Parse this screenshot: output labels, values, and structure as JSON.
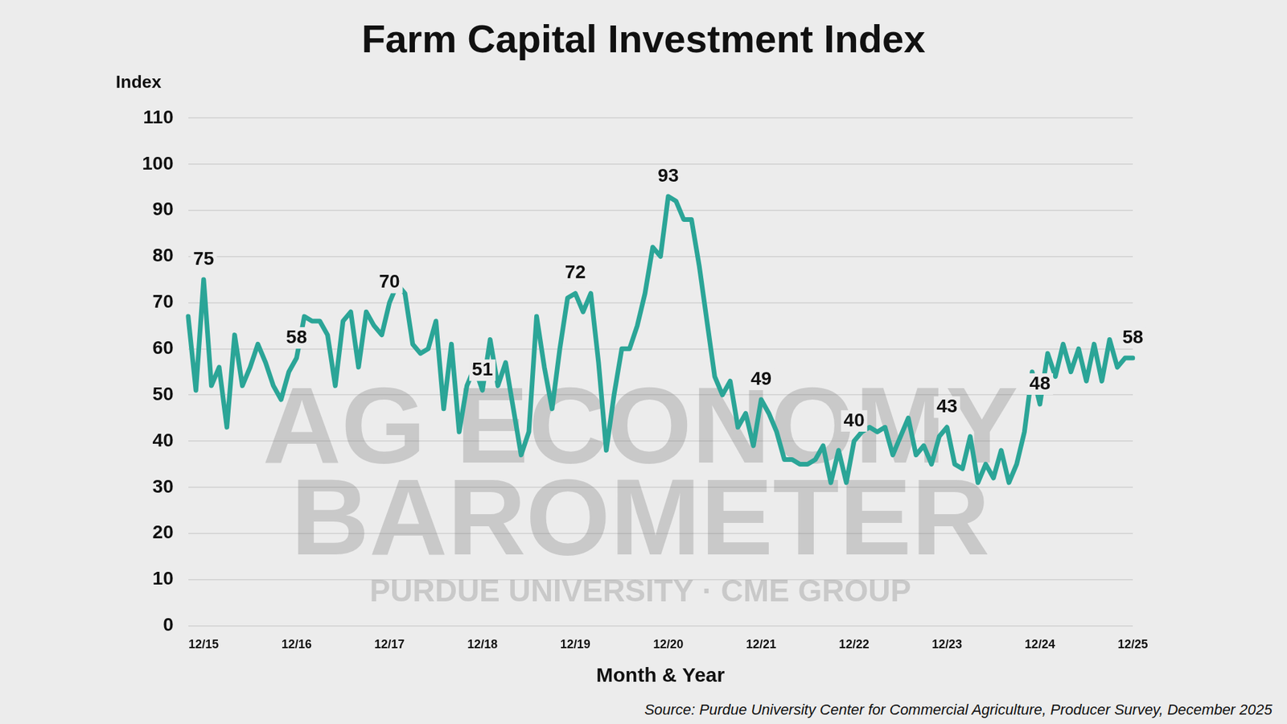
{
  "chart_data": {
    "type": "line",
    "title": "Farm Capital Investment Index",
    "y_label": "Index",
    "x_label": "Month & Year",
    "source": "Source: Purdue University Center for Commercial Agriculture, Producer Survey, December 2025",
    "watermark": [
      "AG ECONOMY",
      "BAROMETER",
      "PURDUE UNIVERSITY · CME GROUP"
    ],
    "categories": [
      null,
      null,
      "12/15",
      null,
      null,
      null,
      null,
      null,
      null,
      null,
      null,
      null,
      null,
      null,
      "12/16",
      null,
      null,
      null,
      null,
      null,
      null,
      null,
      null,
      null,
      null,
      null,
      "12/17",
      null,
      null,
      null,
      null,
      null,
      null,
      null,
      null,
      null,
      null,
      null,
      "12/18",
      null,
      null,
      null,
      null,
      null,
      null,
      null,
      null,
      null,
      null,
      null,
      "12/19",
      null,
      null,
      null,
      null,
      null,
      null,
      null,
      null,
      null,
      null,
      null,
      "12/20",
      null,
      null,
      null,
      null,
      null,
      null,
      null,
      null,
      null,
      null,
      null,
      "12/21",
      null,
      null,
      null,
      null,
      null,
      null,
      null,
      null,
      null,
      null,
      null,
      "12/22",
      null,
      null,
      null,
      null,
      null,
      null,
      null,
      null,
      null,
      null,
      null,
      "12/23",
      null,
      null,
      null,
      null,
      null,
      null,
      null,
      null,
      null,
      null,
      null,
      "12/24",
      null,
      null,
      null,
      null,
      null,
      null,
      null,
      null,
      null,
      null,
      null,
      "12/25"
    ],
    "series": [
      {
        "name": "Farm Capital Investment Index",
        "color": "#2ba597",
        "line_style": "solid",
        "marker": "none",
        "values": [
          67,
          51,
          75,
          52,
          56,
          43,
          63,
          52,
          56,
          61,
          57,
          52,
          49,
          55,
          58,
          67,
          66,
          66,
          63,
          52,
          66,
          68,
          56,
          68,
          65,
          63,
          70,
          74,
          72,
          61,
          59,
          60,
          66,
          47,
          61,
          42,
          52,
          56,
          51,
          62,
          52,
          57,
          47,
          37,
          42,
          67,
          56,
          47,
          60,
          71,
          72,
          68,
          72,
          57,
          38,
          50,
          60,
          60,
          65,
          72,
          82,
          80,
          93,
          92,
          88,
          88,
          78,
          66,
          54,
          50,
          53,
          43,
          46,
          39,
          49,
          46,
          42,
          36,
          36,
          35,
          35,
          36,
          39,
          31,
          38,
          31,
          40,
          42,
          43,
          42,
          43,
          37,
          41,
          45,
          37,
          39,
          35,
          41,
          43,
          35,
          34,
          41,
          31,
          35,
          32,
          38,
          31,
          35,
          42,
          55,
          48,
          59,
          54,
          61,
          55,
          60,
          53,
          61,
          53,
          62,
          56,
          58,
          58
        ],
        "value_labels": [
          null,
          null,
          "75",
          null,
          null,
          null,
          null,
          null,
          null,
          null,
          null,
          null,
          null,
          null,
          "58",
          null,
          null,
          null,
          null,
          null,
          null,
          null,
          null,
          null,
          null,
          null,
          "70",
          null,
          null,
          null,
          null,
          null,
          null,
          null,
          null,
          null,
          null,
          null,
          "51",
          null,
          null,
          null,
          null,
          null,
          null,
          null,
          null,
          null,
          null,
          null,
          "72",
          null,
          null,
          null,
          null,
          null,
          null,
          null,
          null,
          null,
          null,
          null,
          "93",
          null,
          null,
          null,
          null,
          null,
          null,
          null,
          null,
          null,
          null,
          null,
          "49",
          null,
          null,
          null,
          null,
          null,
          null,
          null,
          null,
          null,
          null,
          null,
          "40",
          null,
          null,
          null,
          null,
          null,
          null,
          null,
          null,
          null,
          null,
          null,
          "43",
          null,
          null,
          null,
          null,
          null,
          null,
          null,
          null,
          null,
          null,
          null,
          "48",
          null,
          null,
          null,
          null,
          null,
          null,
          null,
          null,
          null,
          null,
          null,
          "58"
        ]
      }
    ],
    "data_labels": true,
    "ylim": [
      0,
      110
    ],
    "yticks": [
      0,
      10,
      20,
      30,
      40,
      50,
      60,
      70,
      80,
      90,
      100,
      110
    ],
    "grid": true
  }
}
